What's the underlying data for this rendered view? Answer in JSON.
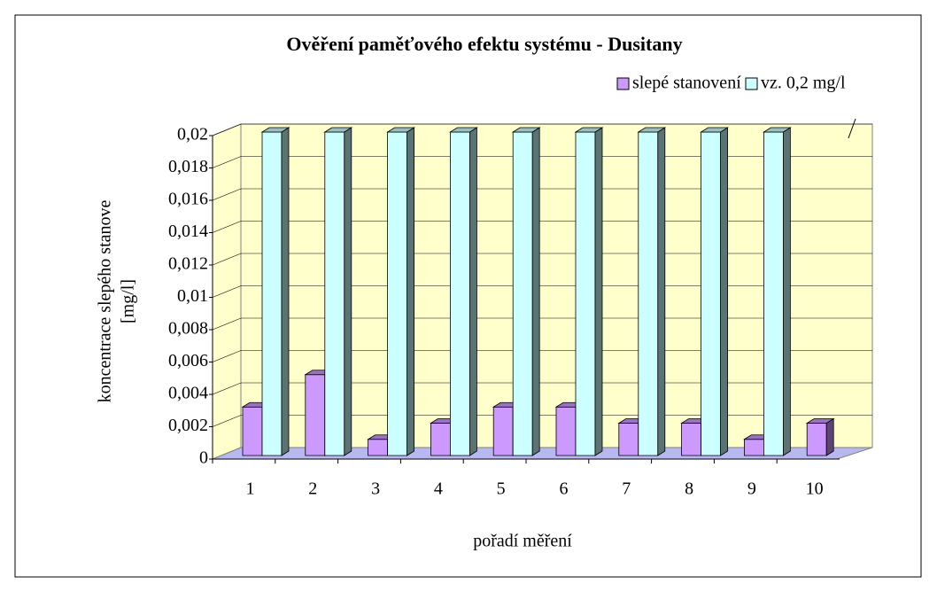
{
  "chart_data": {
    "type": "bar3d",
    "title": "Ověření paměťového efektu systému - Dusitany",
    "xlabel": "pořadí měření",
    "ylabel": [
      "koncentrace slepého stanove",
      "[mg/l]"
    ],
    "categories": [
      "1",
      "2",
      "3",
      "4",
      "5",
      "6",
      "7",
      "8",
      "9",
      "10"
    ],
    "series": [
      {
        "name": "slepé stanovení",
        "color": "#cc99ff",
        "values": [
          0.003,
          0.005,
          0.001,
          0.002,
          0.003,
          0.003,
          0.002,
          0.002,
          0.001,
          0.002
        ]
      },
      {
        "name": "vz. 0,2 mg/l",
        "color": "#ccffff",
        "values": [
          0.02,
          0.02,
          0.02,
          0.02,
          0.02,
          0.02,
          0.02,
          0.02,
          0.02,
          null
        ]
      }
    ],
    "ylim": [
      0,
      0.02
    ],
    "yticks": [
      0,
      {
        "value": 0.002,
        "label": "0,002"
      },
      {
        "value": 0.004,
        "label": "0,004"
      },
      {
        "value": 0.006,
        "label": "0,006"
      },
      {
        "value": 0.008,
        "label": "0,008"
      },
      {
        "value": 0.01,
        "label": "0,01"
      },
      {
        "value": 0.012,
        "label": "0,012"
      },
      {
        "value": 0.014,
        "label": "0,014"
      },
      {
        "value": 0.016,
        "label": "0,016"
      },
      {
        "value": 0.018,
        "label": "0,018"
      },
      {
        "value": 0.02,
        "label": "0,02"
      }
    ],
    "grid": true
  }
}
